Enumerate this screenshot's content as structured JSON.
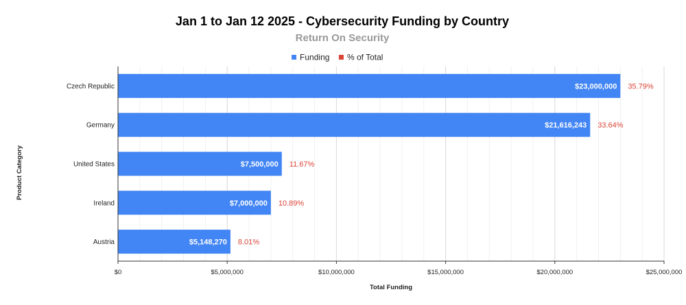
{
  "chart_data": {
    "type": "bar",
    "orientation": "horizontal",
    "title": "Jan 1 to Jan 12 2025 - Cybersecurity Funding by Country",
    "subtitle": "Return On Security",
    "xlabel": "Total Funding",
    "ylabel": "Product Category",
    "xlim": [
      0,
      25000000
    ],
    "x_ticks": [
      {
        "value": 0,
        "label": "$0"
      },
      {
        "value": 5000000,
        "label": "$5,000,000"
      },
      {
        "value": 10000000,
        "label": "$10,000,000"
      },
      {
        "value": 15000000,
        "label": "$15,000,000"
      },
      {
        "value": 20000000,
        "label": "$20,000,000"
      },
      {
        "value": 25000000,
        "label": "$25,000,000"
      }
    ],
    "minor_tick_step": 1000000,
    "grid": true,
    "legend_position": "top",
    "legend": [
      {
        "name": "Funding",
        "color": "#4285f4"
      },
      {
        "name": "% of Total",
        "color": "#db4437"
      }
    ],
    "categories": [
      "Czech Republic",
      "Germany",
      "United States",
      "Ireland",
      "Austria"
    ],
    "series": [
      {
        "name": "Funding",
        "color": "#4285f4",
        "values": [
          23000000,
          21616243,
          7500000,
          7000000,
          5148270
        ],
        "labels": [
          "$23,000,000",
          "$21,616,243",
          "$7,500,000",
          "$7,000,000",
          "$5,148,270"
        ]
      },
      {
        "name": "% of Total",
        "color": "#db4437",
        "values": [
          35.79,
          33.64,
          11.67,
          10.89,
          8.01
        ],
        "labels": [
          "35.79%",
          "33.64%",
          "11.67%",
          "10.89%",
          "8.01%"
        ]
      }
    ]
  }
}
